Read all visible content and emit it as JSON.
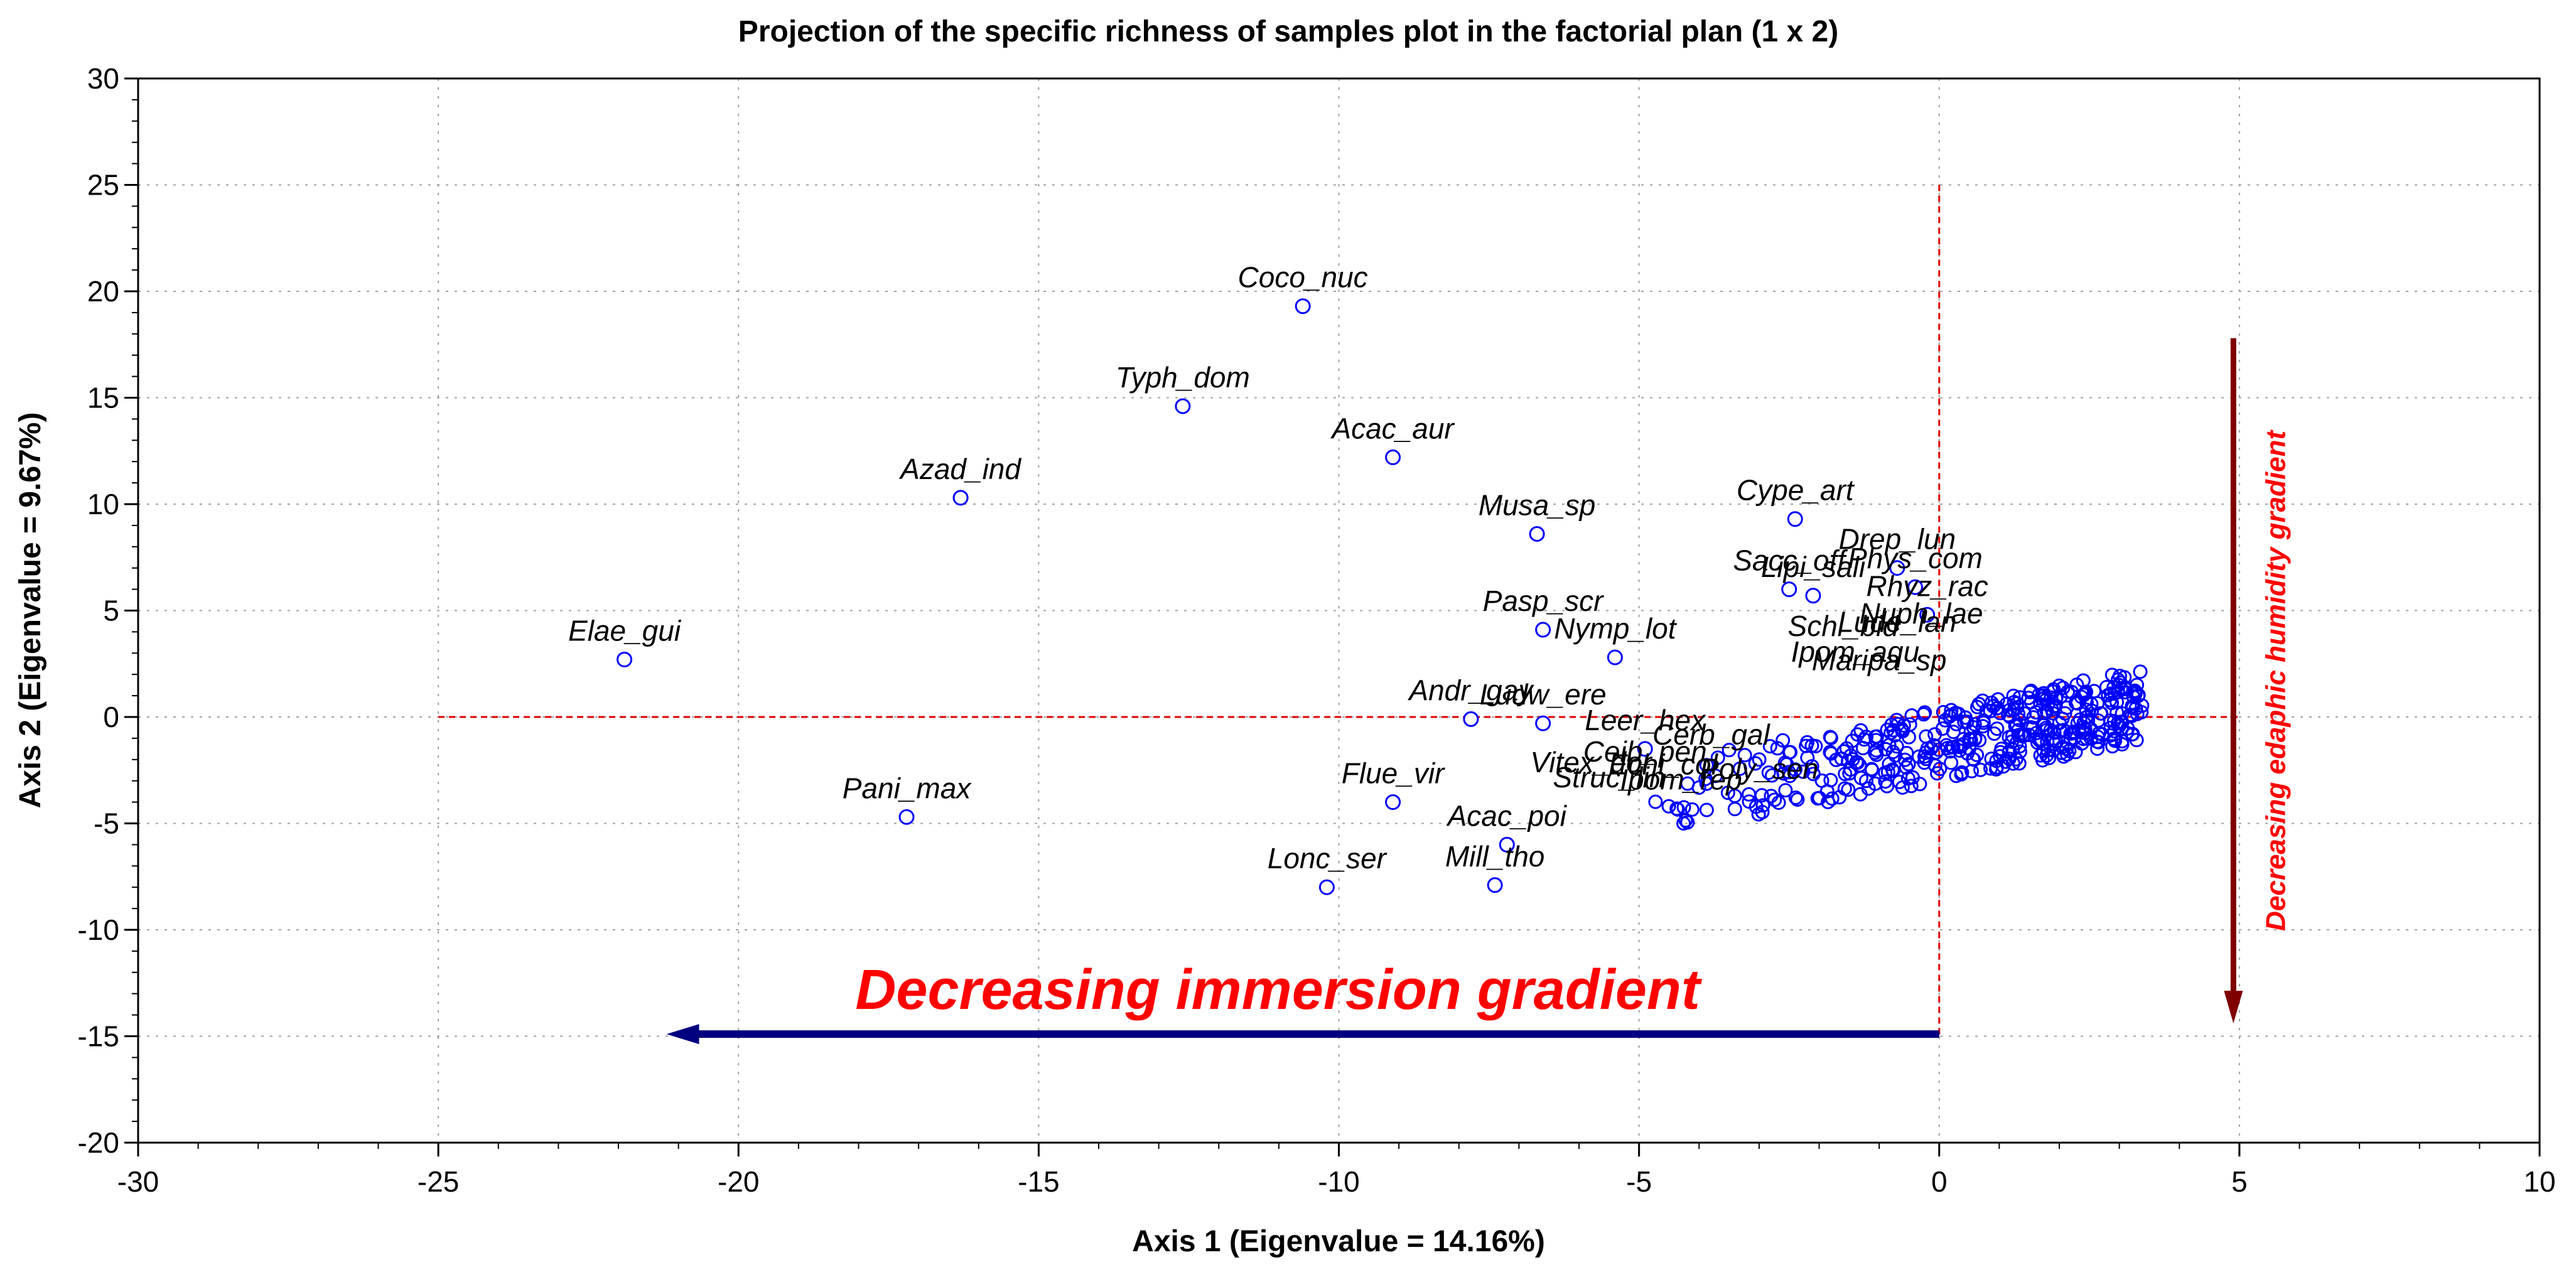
{
  "chart_data": {
    "type": "scatter",
    "title": "Projection of the specific richness of samples plot in the factorial plan (1 x 2)",
    "xlabel": "Axis 1 (Eigenvalue = 14.16%)",
    "ylabel": "Axis 2 (Eigenvalue = 9.67%)",
    "xlim": [
      -30,
      10
    ],
    "ylim": [
      -20,
      30
    ],
    "xticks": [
      -30,
      -25,
      -20,
      -15,
      -10,
      -5,
      0,
      5,
      10
    ],
    "yticks": [
      -20,
      -15,
      -10,
      -5,
      0,
      5,
      10,
      15,
      20,
      25,
      30
    ],
    "grid": true,
    "reference_lines": {
      "x": 0,
      "y": 0,
      "x_range": [
        -25,
        5
      ],
      "y_range": [
        -15,
        25
      ]
    },
    "labeled_points": [
      {
        "label": "Coco_nuc",
        "x": -10.6,
        "y": 19.3
      },
      {
        "label": "Typh_dom",
        "x": -12.6,
        "y": 14.6
      },
      {
        "label": "Acac_aur",
        "x": -9.1,
        "y": 12.2
      },
      {
        "label": "Azad_ind",
        "x": -16.3,
        "y": 10.3
      },
      {
        "label": "Musa_sp",
        "x": -6.7,
        "y": 8.6
      },
      {
        "label": "Cype_art",
        "x": -2.4,
        "y": 9.3
      },
      {
        "label": "Drep_lun",
        "x": -0.7,
        "y": 7.0
      },
      {
        "label": "Sacc_off",
        "x": -2.5,
        "y": 6.0
      },
      {
        "label": "Lipi_sali",
        "x": -2.1,
        "y": 5.7
      },
      {
        "label": "Phys_com",
        "x": -0.4,
        "y": 6.1
      },
      {
        "label": "Rhyz_rac",
        "x": -0.2,
        "y": 4.8
      },
      {
        "label": "Pasp_scr",
        "x": -6.6,
        "y": 4.1
      },
      {
        "label": "Nymp_lot",
        "x": -5.4,
        "y": 2.8
      },
      {
        "label": "Elae_gui",
        "x": -21.9,
        "y": 2.7
      },
      {
        "label": "Andr_gay",
        "x": -7.8,
        "y": -0.1
      },
      {
        "label": "Ludw_ere",
        "x": -6.6,
        "y": -0.3
      },
      {
        "label": "Leer_hex",
        "x": -4.9,
        "y": -1.5
      },
      {
        "label": "Flue_vir",
        "x": -9.1,
        "y": -4.0
      },
      {
        "label": "Pani_max",
        "x": -17.2,
        "y": -4.7
      },
      {
        "label": "Acac_poi",
        "x": -7.2,
        "y": -6.0
      },
      {
        "label": "Lonc_ser",
        "x": -10.2,
        "y": -8.0
      },
      {
        "label": "Mill_tho",
        "x": -7.4,
        "y": -7.9
      }
    ],
    "dense_cluster": {
      "description": "many overlapping unlabeled points",
      "x_range": [
        -5,
        3.4
      ],
      "y_range": [
        -5,
        2.5
      ]
    },
    "annotations": [
      {
        "text": "Decreasing immersion gradient",
        "arrow_direction": "left",
        "arrow_from": [
          0,
          -14.9
        ],
        "arrow_to": [
          -21.2,
          -14.9
        ],
        "color": "#000080"
      },
      {
        "text": "Decreasing edaphic humidity gradient",
        "arrow_direction": "down",
        "arrow_from": [
          4.9,
          17.8
        ],
        "arrow_to": [
          4.9,
          -14.4
        ],
        "color": "#7f0000"
      }
    ],
    "overlap_labels": [
      "Schl_bid",
      "Lude_lan",
      "Nuph_lae",
      "Ipom_aqu",
      "Maripa_sp",
      "Cerb_gal",
      "Echi_col",
      "Vitex_dor",
      "Struc_lin",
      "Ipom_rep",
      "Poly_sen",
      "Ceib_pen"
    ]
  }
}
